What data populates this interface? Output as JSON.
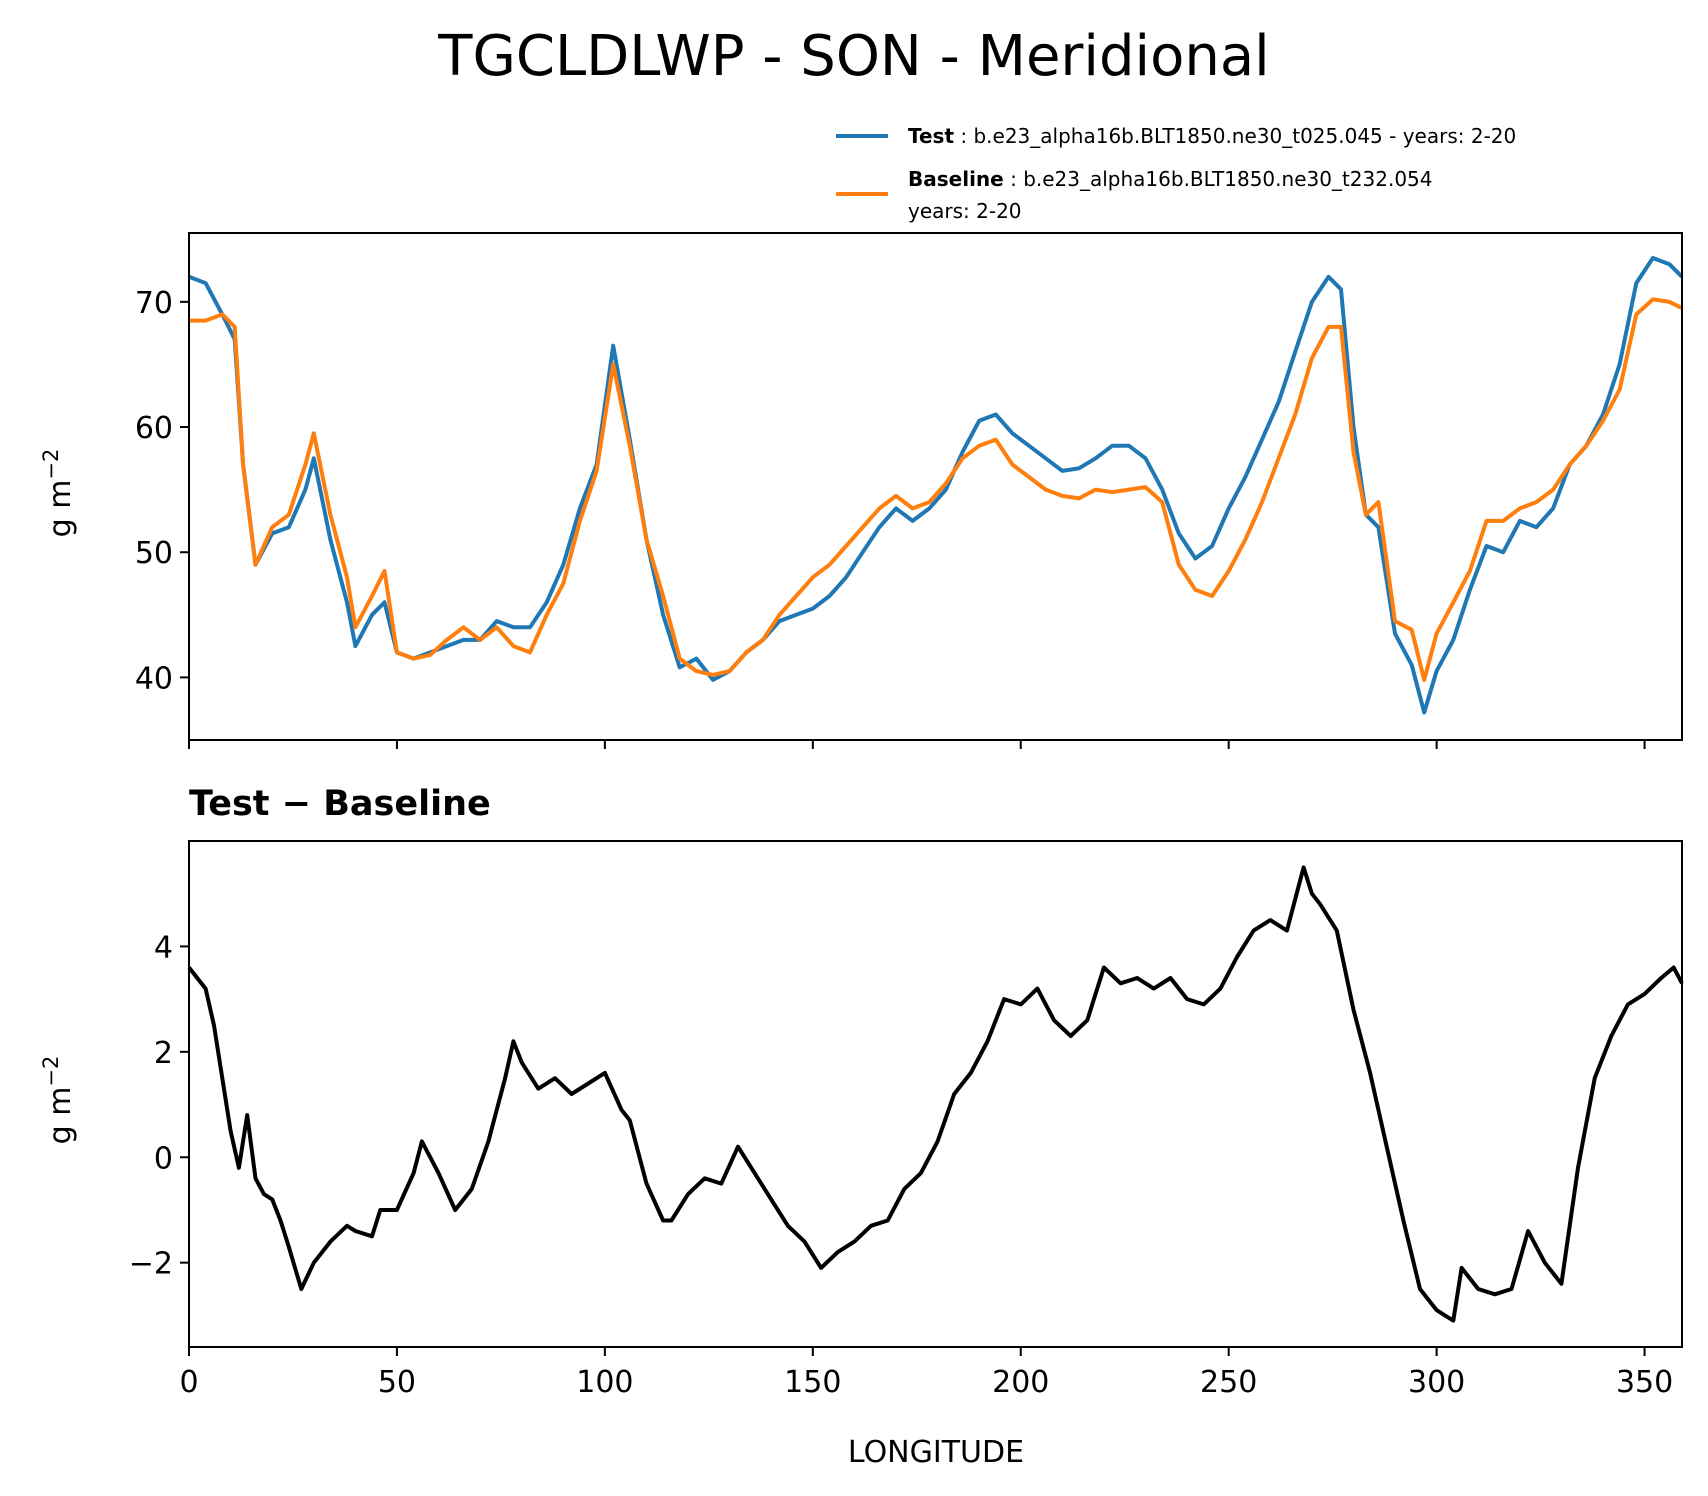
{
  "chart_data": [
    {
      "type": "line",
      "title": "TGCLDLWP - SON - Meridional",
      "xlabel": "",
      "ylabel": "g m",
      "ylabel_exponent": "−2",
      "xlim": [
        0,
        359
      ],
      "ylim": [
        35,
        75.5
      ],
      "yticks": [
        40,
        50,
        60,
        70
      ],
      "ytick_labels": [
        "40",
        "50",
        "60",
        "70"
      ],
      "xticks": [
        0,
        50,
        100,
        150,
        200,
        250,
        300,
        350
      ],
      "legend_position": "top-right (above plot)",
      "legend": [
        {
          "name_bold": "Test",
          "separator": " : ",
          "text": "b.e23_alpha16b.BLT1850.ne30_t025.045 - years: 2-20",
          "color": "#1f77b4"
        },
        {
          "name_bold": "Baseline",
          "separator": " : ",
          "text": "b.e23_alpha16b.BLT1850.ne30_t232.054",
          "text2": "years: 2-20",
          "color": "#ff7f0e"
        }
      ],
      "x": [
        0,
        4,
        8,
        11,
        13,
        16,
        20,
        24,
        28,
        30,
        34,
        38,
        40,
        44,
        47,
        50,
        54,
        58,
        62,
        66,
        70,
        74,
        78,
        82,
        86,
        90,
        94,
        98,
        102,
        106,
        110,
        114,
        118,
        122,
        126,
        130,
        134,
        138,
        142,
        146,
        150,
        154,
        158,
        162,
        166,
        170,
        174,
        178,
        182,
        186,
        190,
        194,
        198,
        202,
        206,
        210,
        214,
        218,
        222,
        226,
        230,
        234,
        238,
        242,
        246,
        250,
        254,
        258,
        262,
        266,
        270,
        274,
        277,
        280,
        283,
        286,
        290,
        294,
        297,
        300,
        304,
        308,
        312,
        316,
        320,
        324,
        328,
        332,
        336,
        340,
        344,
        348,
        352,
        356,
        359
      ],
      "series": [
        {
          "name": "Test",
          "color": "#1f77b4",
          "values": [
            72,
            71.5,
            69,
            67,
            57,
            49,
            51.5,
            52,
            55,
            57.5,
            51,
            46,
            42.5,
            45,
            46,
            42,
            41.5,
            42,
            42.5,
            43,
            43,
            44.5,
            44,
            44,
            46,
            49,
            53.5,
            57,
            66.5,
            59,
            51,
            45,
            40.8,
            41.5,
            39.8,
            40.5,
            42,
            43,
            44.5,
            45,
            45.5,
            46.5,
            48,
            50,
            52,
            53.5,
            52.5,
            53.5,
            55,
            58,
            60.5,
            61,
            59.5,
            58.5,
            57.5,
            56.5,
            56.7,
            57.5,
            58.5,
            58.5,
            57.5,
            55,
            51.5,
            49.5,
            50.5,
            53.5,
            56,
            59,
            62,
            66,
            70,
            72,
            71,
            60,
            53,
            52,
            43.5,
            41,
            37.2,
            40.5,
            43,
            47,
            50.5,
            50,
            52.5,
            52,
            53.5,
            57,
            58.5,
            61,
            65,
            71.5,
            73.5,
            73,
            72
          ]
        },
        {
          "name": "Baseline",
          "color": "#ff7f0e",
          "values": [
            68.5,
            68.5,
            69,
            68,
            57,
            49,
            52,
            53,
            57,
            59.5,
            53,
            48,
            44,
            46.5,
            48.5,
            42,
            41.5,
            41.8,
            43,
            44,
            43,
            44,
            42.5,
            42,
            45,
            47.5,
            52.5,
            56.5,
            65,
            58.5,
            51,
            46.5,
            41.5,
            40.5,
            40.2,
            40.5,
            42,
            43,
            45,
            46.5,
            48,
            49,
            50.5,
            52,
            53.5,
            54.5,
            53.5,
            54,
            55.5,
            57.5,
            58.5,
            59,
            57,
            56,
            55,
            54.5,
            54.3,
            55,
            54.8,
            55,
            55.2,
            54,
            49,
            47,
            46.5,
            48.5,
            51,
            54,
            57.5,
            61,
            65.5,
            68,
            68,
            58,
            53,
            54,
            44.5,
            43.8,
            39.8,
            43.5,
            46,
            48.5,
            52.5,
            52.5,
            53.5,
            54,
            55,
            57,
            58.5,
            60.5,
            63,
            69,
            70.2,
            70,
            69.5
          ]
        }
      ]
    },
    {
      "type": "line",
      "title": "Test − Baseline",
      "xlabel": "LONGITUDE",
      "ylabel": "g m",
      "ylabel_exponent": "−2",
      "xlim": [
        0,
        359
      ],
      "ylim": [
        -3.6,
        6.0
      ],
      "yticks": [
        -2,
        0,
        2,
        4
      ],
      "ytick_labels": [
        "−2",
        "0",
        "2",
        "4"
      ],
      "xticks": [
        0,
        50,
        100,
        150,
        200,
        250,
        300,
        350
      ],
      "xtick_labels": [
        "0",
        "50",
        "100",
        "150",
        "200",
        "250",
        "300",
        "350"
      ],
      "x": [
        0,
        4,
        6,
        8,
        10,
        12,
        14,
        16,
        18,
        20,
        22,
        24,
        27,
        30,
        34,
        38,
        40,
        44,
        46,
        50,
        54,
        56,
        60,
        64,
        68,
        72,
        76,
        78,
        80,
        84,
        88,
        92,
        96,
        100,
        104,
        106,
        110,
        114,
        116,
        120,
        124,
        128,
        132,
        136,
        140,
        144,
        148,
        152,
        156,
        160,
        164,
        168,
        172,
        176,
        180,
        184,
        188,
        192,
        196,
        200,
        204,
        208,
        212,
        216,
        220,
        224,
        228,
        232,
        236,
        240,
        244,
        248,
        252,
        256,
        260,
        264,
        268,
        270,
        272,
        276,
        280,
        284,
        288,
        292,
        296,
        300,
        302,
        304,
        306,
        310,
        314,
        318,
        322,
        326,
        330,
        334,
        338,
        342,
        346,
        350,
        354,
        357,
        359
      ],
      "series": [
        {
          "name": "Test − Baseline",
          "color": "#000000",
          "values": [
            3.6,
            3.2,
            2.5,
            1.5,
            0.5,
            -0.2,
            0.8,
            -0.4,
            -0.7,
            -0.8,
            -1.2,
            -1.7,
            -2.5,
            -2.0,
            -1.6,
            -1.3,
            -1.4,
            -1.5,
            -1.0,
            -1.0,
            -0.3,
            0.3,
            -0.3,
            -1.0,
            -0.6,
            0.3,
            1.5,
            2.2,
            1.8,
            1.3,
            1.5,
            1.2,
            1.4,
            1.6,
            0.9,
            0.7,
            -0.5,
            -1.2,
            -1.2,
            -0.7,
            -0.4,
            -0.5,
            0.2,
            -0.3,
            -0.8,
            -1.3,
            -1.6,
            -2.1,
            -1.8,
            -1.6,
            -1.3,
            -1.2,
            -0.6,
            -0.3,
            0.3,
            1.2,
            1.6,
            2.2,
            3.0,
            2.9,
            3.2,
            2.6,
            2.3,
            2.6,
            3.6,
            3.3,
            3.4,
            3.2,
            3.4,
            3.0,
            2.9,
            3.2,
            3.8,
            4.3,
            4.5,
            4.3,
            5.5,
            5.0,
            4.8,
            4.3,
            2.8,
            1.6,
            0.2,
            -1.2,
            -2.5,
            -2.9,
            -3.0,
            -3.1,
            -2.1,
            -2.5,
            -2.6,
            -2.5,
            -1.4,
            -2.0,
            -2.4,
            -0.2,
            1.5,
            2.3,
            2.9,
            3.1,
            3.4,
            3.6,
            3.3
          ]
        }
      ]
    }
  ]
}
